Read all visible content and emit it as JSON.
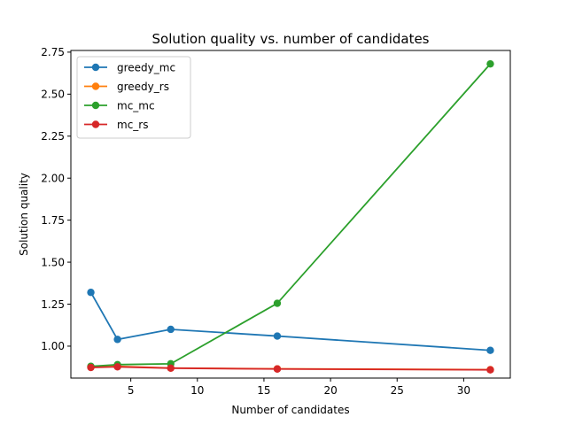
{
  "chart_data": {
    "type": "line",
    "title": "Solution quality vs. number of candidates",
    "xlabel": "Number of candidates",
    "ylabel": "Solution quality",
    "xlim": [
      0.5,
      33.5
    ],
    "ylim": [
      0.81,
      2.76
    ],
    "xticks": [
      5,
      10,
      15,
      20,
      25,
      30
    ],
    "xtick_labels": [
      "5",
      "10",
      "15",
      "20",
      "25",
      "30"
    ],
    "yticks": [
      1.0,
      1.25,
      1.5,
      1.75,
      2.0,
      2.25,
      2.5,
      2.75
    ],
    "ytick_labels": [
      "1.00",
      "1.25",
      "1.50",
      "1.75",
      "2.00",
      "2.25",
      "2.50",
      "2.75"
    ],
    "grid": false,
    "legend_position": "top-left",
    "x": [
      2,
      4,
      8,
      16,
      32
    ],
    "series": [
      {
        "name": "greedy_mc",
        "color": "#1f77b4",
        "values": [
          1.32,
          1.04,
          1.1,
          1.06,
          0.975
        ]
      },
      {
        "name": "greedy_rs",
        "color": "#ff7f0e",
        "values": [
          0.875,
          0.88,
          0.87,
          0.865,
          0.86
        ]
      },
      {
        "name": "mc_mc",
        "color": "#2ca02c",
        "values": [
          0.88,
          0.89,
          0.895,
          1.255,
          2.68
        ]
      },
      {
        "name": "mc_rs",
        "color": "#d62728",
        "values": [
          0.873,
          0.877,
          0.869,
          0.864,
          0.859
        ]
      }
    ]
  }
}
